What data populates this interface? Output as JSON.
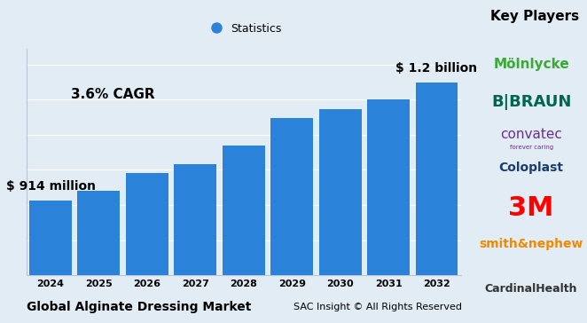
{
  "chart_data": {
    "type": "bar",
    "title": "Global Alginate Dressing Market",
    "source": "SAC Insight © All Rights Reserved",
    "categories": [
      "2024",
      "2025",
      "2026",
      "2027",
      "2028",
      "2029",
      "2030",
      "2031",
      "2032"
    ],
    "series": [
      {
        "name": "Statistics",
        "color": "#2b83d9",
        "values": [
          914,
          938,
          981,
          1002,
          1047,
          1113,
          1134,
          1158,
          1200
        ],
        "value_labels": [
          "$ 914 million",
          null,
          null,
          null,
          null,
          null,
          null,
          null,
          "$ 1.2 billion"
        ]
      }
    ],
    "annotations": [
      {
        "text": "3.6% CAGR"
      }
    ],
    "ylim": [
      733,
      1280
    ],
    "yticks": [
      733,
      818,
      903,
      988,
      1073,
      1158,
      1243
    ],
    "grid": true,
    "legend": "upper center",
    "data_labels": true,
    "tick_labels": "x"
  },
  "key_players": {
    "title": "Key Players",
    "players": [
      {
        "name": "Mölnlycke"
      },
      {
        "name": "B|BRAUN"
      },
      {
        "name": "convatec",
        "tagline": "forever caring"
      },
      {
        "name": "Coloplast"
      },
      {
        "name": "3M"
      },
      {
        "name": "smith&nephew"
      },
      {
        "name": "CardinalHealth"
      }
    ]
  }
}
